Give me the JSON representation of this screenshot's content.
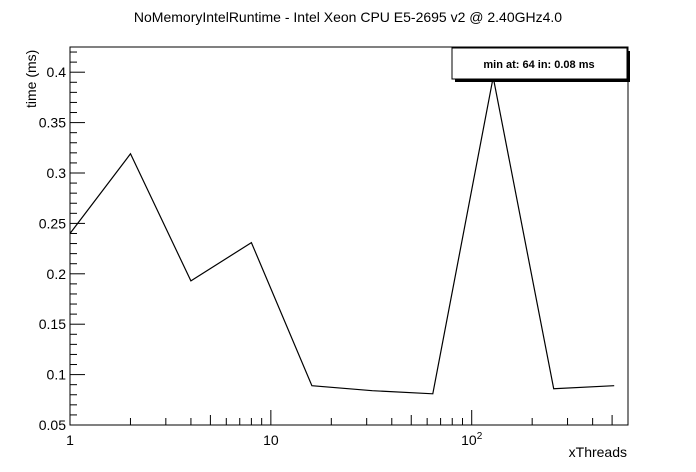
{
  "chart_data": {
    "type": "line",
    "title": "NoMemoryIntelRuntime - Intel Xeon CPU E5-2695 v2 @ 2.40GHz4.0",
    "xlabel": "xThreads",
    "ylabel": "time (ms)",
    "x_scale": "log",
    "xlim": [
      1,
      600
    ],
    "ylim": [
      0.05,
      0.425
    ],
    "x_ticks": [
      {
        "value": 1,
        "base": "1",
        "exp": ""
      },
      {
        "value": 10,
        "base": "10",
        "exp": ""
      },
      {
        "value": 100,
        "base": "10",
        "exp": "2"
      }
    ],
    "y_ticks": [
      {
        "value": 0.05,
        "label": "0.05"
      },
      {
        "value": 0.1,
        "label": "0.1"
      },
      {
        "value": 0.15,
        "label": "0.15"
      },
      {
        "value": 0.2,
        "label": "0.2"
      },
      {
        "value": 0.25,
        "label": "0.25"
      },
      {
        "value": 0.3,
        "label": "0.3"
      },
      {
        "value": 0.35,
        "label": "0.35"
      },
      {
        "value": 0.4,
        "label": "0.4"
      }
    ],
    "series": [
      {
        "x": [
          1,
          2,
          4,
          8,
          16,
          32,
          64,
          128,
          256,
          512
        ],
        "y": [
          0.24,
          0.319,
          0.193,
          0.231,
          0.089,
          0.084,
          0.081,
          0.395,
          0.086,
          0.089
        ],
        "color": "#000000"
      }
    ],
    "annotation": "min at: 64 in: 0.08 ms",
    "grid": false,
    "legend_position": "top-right"
  }
}
